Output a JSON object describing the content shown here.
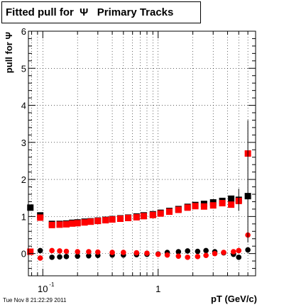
{
  "title": "Fitted pull for  Ψ   Primary Tracks",
  "footer": "Tue Nov  8 21:22:29 2011",
  "chart_data": {
    "type": "scatter",
    "title": "Fitted pull for  Ψ   Primary Tracks",
    "xlabel": "pT (GeV/c)",
    "ylabel": "pull for Ψ",
    "xscale": "log",
    "xlim": [
      0.075,
      7
    ],
    "ylim": [
      -0.6,
      6
    ],
    "yticks": [
      0,
      1,
      2,
      3,
      4,
      5,
      6
    ],
    "xticks": [
      {
        "value": 0.1,
        "label": "10",
        "sup": "-1"
      },
      {
        "value": 1,
        "label": "1",
        "sup": ""
      }
    ],
    "grid": true,
    "series": [
      {
        "color": "#000000",
        "role": "sigma",
        "points": [
          [
            0.078,
            1.24
          ],
          [
            0.095,
            1.03
          ],
          [
            0.12,
            0.8
          ],
          [
            0.14,
            0.8
          ],
          [
            0.16,
            0.81
          ],
          [
            0.18,
            0.83
          ],
          [
            0.2,
            0.84
          ],
          [
            0.23,
            0.86
          ],
          [
            0.26,
            0.87
          ],
          [
            0.3,
            0.89
          ],
          [
            0.35,
            0.91
          ],
          [
            0.4,
            0.93
          ],
          [
            0.47,
            0.95
          ],
          [
            0.55,
            0.97
          ],
          [
            0.65,
            1.0
          ],
          [
            0.75,
            1.03
          ],
          [
            0.9,
            1.06
          ],
          [
            1.05,
            1.1
          ],
          [
            1.25,
            1.15
          ],
          [
            1.5,
            1.2
          ],
          [
            1.8,
            1.26
          ],
          [
            2.1,
            1.31
          ],
          [
            2.5,
            1.34
          ],
          [
            3.0,
            1.38
          ],
          [
            3.6,
            1.42
          ],
          [
            4.3,
            1.48
          ],
          [
            5.0,
            1.45
          ],
          [
            6.0,
            1.55
          ]
        ]
      },
      {
        "color": "#000000",
        "role": "mean",
        "points": [
          [
            0.078,
            0.05
          ],
          [
            0.095,
            0.08
          ],
          [
            0.12,
            -0.1
          ],
          [
            0.14,
            -0.09
          ],
          [
            0.16,
            -0.08
          ],
          [
            0.2,
            -0.07
          ],
          [
            0.25,
            -0.06
          ],
          [
            0.3,
            -0.05
          ],
          [
            0.4,
            -0.04
          ],
          [
            0.5,
            -0.04
          ],
          [
            0.65,
            -0.03
          ],
          [
            0.8,
            -0.02
          ],
          [
            1.0,
            -0.01
          ],
          [
            1.2,
            0.03
          ],
          [
            1.5,
            0.05
          ],
          [
            1.8,
            0.07
          ],
          [
            2.2,
            0.06
          ],
          [
            2.6,
            0.08
          ],
          [
            3.1,
            0.05
          ],
          [
            3.7,
            0.02
          ],
          [
            4.5,
            -0.02
          ],
          [
            5.0,
            -0.1
          ],
          [
            6.0,
            0.1
          ]
        ]
      },
      {
        "color": "#ff0000",
        "role": "sigma",
        "points": [
          [
            0.078,
            0.05
          ],
          [
            0.095,
            0.97
          ],
          [
            0.12,
            0.77
          ],
          [
            0.14,
            0.78
          ],
          [
            0.16,
            0.79
          ],
          [
            0.18,
            0.81
          ],
          [
            0.2,
            0.82
          ],
          [
            0.23,
            0.84
          ],
          [
            0.26,
            0.86
          ],
          [
            0.3,
            0.88
          ],
          [
            0.35,
            0.9
          ],
          [
            0.4,
            0.92
          ],
          [
            0.47,
            0.94
          ],
          [
            0.55,
            0.96
          ],
          [
            0.65,
            0.98
          ],
          [
            0.75,
            1.01
          ],
          [
            0.9,
            1.04
          ],
          [
            1.05,
            1.08
          ],
          [
            1.25,
            1.13
          ],
          [
            1.5,
            1.18
          ],
          [
            1.8,
            1.24
          ],
          [
            2.1,
            1.28
          ],
          [
            2.5,
            1.27
          ],
          [
            3.0,
            1.3
          ],
          [
            3.6,
            1.36
          ],
          [
            4.3,
            1.32
          ],
          [
            5.0,
            1.42
          ],
          [
            6.0,
            2.7
          ]
        ]
      },
      {
        "color": "#ff0000",
        "role": "mean",
        "points": [
          [
            0.095,
            -0.12
          ],
          [
            0.12,
            0.08
          ],
          [
            0.14,
            0.07
          ],
          [
            0.16,
            0.06
          ],
          [
            0.2,
            0.05
          ],
          [
            0.25,
            0.05
          ],
          [
            0.3,
            0.04
          ],
          [
            0.4,
            0.03
          ],
          [
            0.5,
            0.03
          ],
          [
            0.65,
            0.02
          ],
          [
            0.8,
            0.01
          ],
          [
            1.0,
            -0.02
          ],
          [
            1.2,
            -0.04
          ],
          [
            1.5,
            -0.07
          ],
          [
            1.8,
            -0.1
          ],
          [
            2.2,
            -0.08
          ],
          [
            2.6,
            -0.05
          ],
          [
            3.1,
            0.0
          ],
          [
            3.7,
            0.03
          ],
          [
            4.5,
            0.05
          ],
          [
            5.0,
            0.08
          ],
          [
            6.0,
            0.5
          ]
        ]
      }
    ]
  }
}
